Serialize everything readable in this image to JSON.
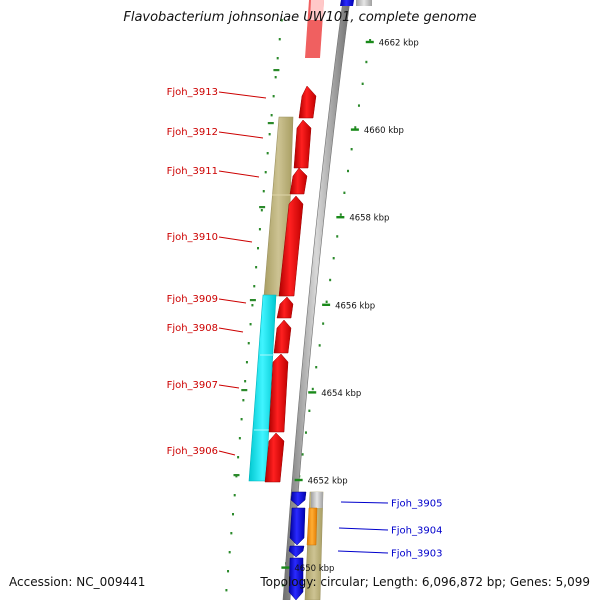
{
  "title": "Flavobacterium johnsoniae UW101, complete genome",
  "footer": {
    "accession": "Accession: NC_009441",
    "topology": "Topology: circular; Length: 6,096,872 bp; Genes: 5,099"
  },
  "kbp_ticks": [
    {
      "label": "4662 kbp"
    },
    {
      "label": "4660 kbp"
    },
    {
      "label": "4658 kbp"
    },
    {
      "label": "4656 kbp"
    },
    {
      "label": "4654 kbp"
    },
    {
      "label": "4652 kbp"
    },
    {
      "label": "4650 kbp"
    }
  ],
  "left_gene_labels": [
    {
      "label": "Fjoh_3913"
    },
    {
      "label": "Fjoh_3912"
    },
    {
      "label": "Fjoh_3911"
    },
    {
      "label": "Fjoh_3910"
    },
    {
      "label": "Fjoh_3909"
    },
    {
      "label": "Fjoh_3908"
    },
    {
      "label": "Fjoh_3907"
    },
    {
      "label": "Fjoh_3906"
    }
  ],
  "right_gene_labels": [
    {
      "label": "Fjoh_3905"
    },
    {
      "label": "Fjoh_3904"
    },
    {
      "label": "Fjoh_3903"
    }
  ],
  "colors": {
    "forward_gene": "#ff0000",
    "reverse_gene": "#0000ee",
    "khaki_band": "#bdb27a",
    "cyan_band": "#00e5ee",
    "orange_band": "#ff9900",
    "backbone": "#8c8c8c",
    "ruler_tick": "#1a8a1a",
    "left_label": "#cc0000",
    "right_label": "#0000cc"
  }
}
